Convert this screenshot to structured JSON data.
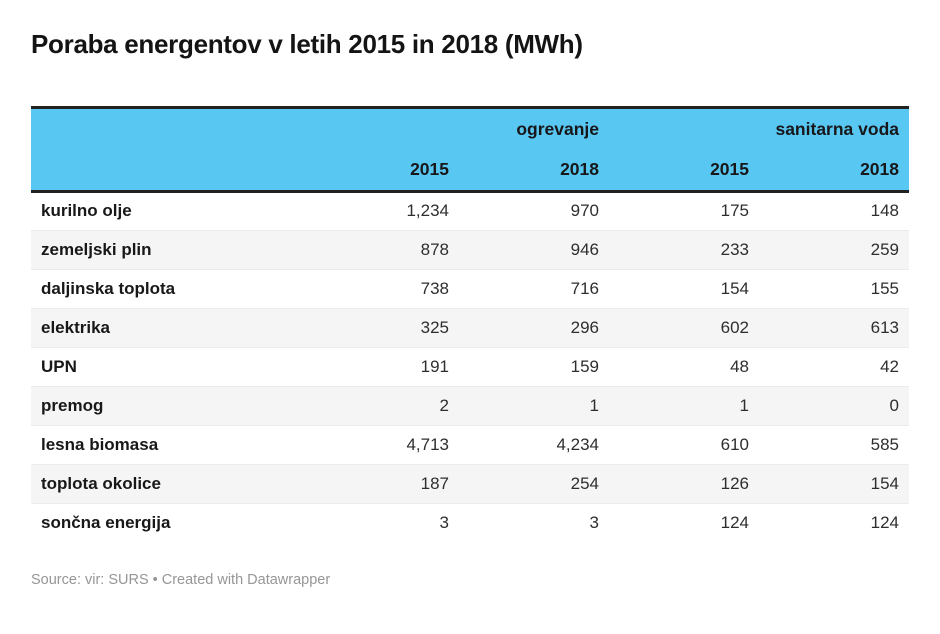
{
  "title": "Poraba energentov v letih 2015 in 2018 (MWh)",
  "chart_data": {
    "type": "table",
    "title": "Poraba energentov v letih 2015 in 2018 (MWh)",
    "unit": "MWh",
    "column_groups": [
      "ogrevanje",
      "sanitarna voda"
    ],
    "year_headers": [
      "2015",
      "2018",
      "2015",
      "2018"
    ],
    "columns": [
      "",
      "ogrevanje 2015",
      "ogrevanje 2018",
      "sanitarna voda 2015",
      "sanitarna voda 2018"
    ],
    "rows": [
      {
        "label": "kurilno olje",
        "values": [
          1234,
          970,
          175,
          148
        ]
      },
      {
        "label": "zemeljski plin",
        "values": [
          878,
          946,
          233,
          259
        ]
      },
      {
        "label": "daljinska toplota",
        "values": [
          738,
          716,
          154,
          155
        ]
      },
      {
        "label": "elektrika",
        "values": [
          325,
          296,
          602,
          613
        ]
      },
      {
        "label": "UPN",
        "values": [
          191,
          159,
          48,
          42
        ]
      },
      {
        "label": "premog",
        "values": [
          2,
          1,
          1,
          0
        ]
      },
      {
        "label": "lesna biomasa",
        "values": [
          4713,
          4234,
          610,
          585
        ]
      },
      {
        "label": "toplota okolice",
        "values": [
          187,
          254,
          126,
          154
        ]
      },
      {
        "label": "sončna energija",
        "values": [
          3,
          3,
          124,
          124
        ]
      }
    ],
    "number_format": "thousands-comma",
    "layout": {
      "stripe_even_rows": true,
      "group_headers_align": "right",
      "values_align": "right"
    }
  },
  "footer": {
    "source": "Source: vir: SURS",
    "separator": "•",
    "credit": "Created with Datawrapper"
  },
  "colors": {
    "header_bg": "#58c8f2",
    "border_dark": "#222222",
    "stripe": "#f5f5f5",
    "row_border": "#ebebeb",
    "footer_text": "#969696"
  }
}
